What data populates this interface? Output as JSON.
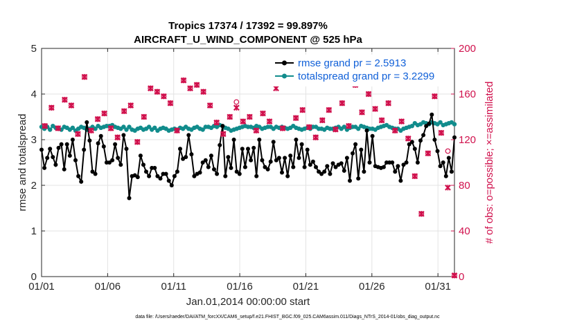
{
  "chart_data": {
    "type": "line",
    "title": "Tropics 17374 / 17392 = 99.897%",
    "subtitle": "AIRCRAFT_U_WIND_COMPONENT @ 525 hPa",
    "xlabel": "Jan.01,2014 00:00:00 start",
    "ylabel": "rmse and totalspread",
    "ylabel_right": "# of obs: o=possible; ×=assimilated",
    "footer": "data file: /Users/raeder/DAI/ATM_forcXX/CAM6_setup/f.e21.FHIST_BGC.f09_025.CAM6assim.011/Diags_NTrS_2014-01/obs_diag_output.nc",
    "xlim": [
      0,
      31.25
    ],
    "ylim": [
      0,
      5
    ],
    "ylim_right": [
      0,
      200
    ],
    "x_tick_values": [
      0,
      5,
      10,
      15,
      20,
      25,
      30
    ],
    "x_tick_labels": [
      "01/01",
      "01/06",
      "01/11",
      "01/16",
      "01/21",
      "01/26",
      "01/31"
    ],
    "y_ticks": [
      "0",
      "1",
      "2",
      "3",
      "4",
      "5"
    ],
    "y_ticks_right": [
      "0",
      "40",
      "80",
      "120",
      "160",
      "200"
    ],
    "legend_position": "top-right",
    "series": [
      {
        "name": "rmse grand pr = 2.5913",
        "axis": "left",
        "color": "#000000",
        "values": [
          2.78,
          2.38,
          2.6,
          2.8,
          2.62,
          2.45,
          2.82,
          2.9,
          2.35,
          2.9,
          2.65,
          3.0,
          2.55,
          2.2,
          2.08,
          2.78,
          3.38,
          2.98,
          2.3,
          2.25,
          2.92,
          3.08,
          2.85,
          2.5,
          2.5,
          2.55,
          2.9,
          2.6,
          2.45,
          3.1,
          2.8,
          1.72,
          2.2,
          2.22,
          2.18,
          2.65,
          2.45,
          2.3,
          2.2,
          2.38,
          2.38,
          2.2,
          2.15,
          2.25,
          2.25,
          2.1,
          2.0,
          2.2,
          2.3,
          2.8,
          2.58,
          2.62,
          3.1,
          2.68,
          2.2,
          2.25,
          2.28,
          2.5,
          2.55,
          2.4,
          2.65,
          2.35,
          2.25,
          2.88,
          3.3,
          2.2,
          2.62,
          2.38,
          3.0,
          2.3,
          2.25,
          2.8,
          2.4,
          2.8,
          2.55,
          2.82,
          2.2,
          3.0,
          2.55,
          2.4,
          2.35,
          2.52,
          2.95,
          2.55,
          2.6,
          2.28,
          2.6,
          2.2,
          2.65,
          2.4,
          3.0,
          2.6,
          2.9,
          2.4,
          2.78,
          2.45,
          2.52,
          2.4,
          2.3,
          2.25,
          2.3,
          2.42,
          2.25,
          2.48,
          2.4,
          2.45,
          2.48,
          2.32,
          2.6,
          2.1,
          2.7,
          2.9,
          2.15,
          2.78,
          2.3,
          3.2,
          2.5,
          3.08,
          2.42,
          2.4,
          2.38,
          2.4,
          2.5,
          2.5,
          2.5,
          2.3,
          2.42,
          2.1,
          2.45,
          2.5,
          2.9,
          2.95,
          2.8,
          2.5,
          2.98,
          3.1,
          3.3,
          3.35,
          3.55,
          3.0,
          2.75,
          2.42,
          2.5,
          2.2,
          2.6,
          2.3,
          3.05
        ],
        "marker": "point"
      },
      {
        "name": "totalspread grand pr = 3.2299",
        "axis": "left",
        "color": "#118c8c",
        "values": [
          3.28,
          3.24,
          3.28,
          3.22,
          3.3,
          3.26,
          3.24,
          3.22,
          3.28,
          3.26,
          3.22,
          3.26,
          3.2,
          3.24,
          3.28,
          3.26,
          3.22,
          3.24,
          3.28,
          3.24,
          3.3,
          3.26,
          3.28,
          3.3,
          3.3,
          3.32,
          3.28,
          3.26,
          3.24,
          3.28,
          3.22,
          3.28,
          3.22,
          3.2,
          3.24,
          3.26,
          3.22,
          3.24,
          3.28,
          3.22,
          3.26,
          3.2,
          3.24,
          3.26,
          3.24,
          3.2,
          3.22,
          3.24,
          3.22,
          3.26,
          3.24,
          3.28,
          3.24,
          3.22,
          3.26,
          3.28,
          3.24,
          3.22,
          3.28,
          3.28,
          3.26,
          3.3,
          3.28,
          3.32,
          3.3,
          3.26,
          3.24,
          3.2,
          3.22,
          3.24,
          3.26,
          3.28,
          3.3,
          3.28,
          3.28,
          3.26,
          3.3,
          3.28,
          3.24,
          3.26,
          3.28,
          3.28,
          3.24,
          3.28,
          3.26,
          3.28,
          3.26,
          3.24,
          3.26,
          3.3,
          3.26,
          3.24,
          3.22,
          3.24,
          3.26,
          3.24,
          3.28,
          3.28,
          3.24,
          3.24,
          3.22,
          3.26,
          3.24,
          3.24,
          3.26,
          3.28,
          3.24,
          3.28,
          3.22,
          3.26,
          3.28,
          3.28,
          3.24,
          3.3,
          3.28,
          3.26,
          3.24,
          3.24,
          3.22,
          3.26,
          3.28,
          3.3,
          3.32,
          3.28,
          3.26,
          3.24,
          3.24,
          3.2,
          3.24,
          3.26,
          3.28,
          3.3,
          3.36,
          3.32,
          3.34,
          3.38,
          3.36,
          3.34,
          3.38,
          3.36,
          3.34,
          3.38,
          3.32,
          3.34,
          3.36,
          3.38,
          3.34
        ],
        "marker": "circle"
      },
      {
        "name": "obs possible",
        "axis": "right",
        "color": "#d0104c",
        "marker": "o",
        "x": [
          0.25,
          0.75,
          1.25,
          1.75,
          2.25,
          2.75,
          3.25,
          3.75,
          4.25,
          4.75,
          5.25,
          5.75,
          6.25,
          6.75,
          7.25,
          7.75,
          8.25,
          8.75,
          9.25,
          9.75,
          10.25,
          10.75,
          11.25,
          11.75,
          12.25,
          12.75,
          13.25,
          13.75,
          14.25,
          14.75,
          15.25,
          15.75,
          16.25,
          16.75,
          17.25,
          17.75,
          18.25,
          18.75,
          19.25,
          19.75,
          20.25,
          20.75,
          21.25,
          21.75,
          22.25,
          22.75,
          23.25,
          23.75,
          24.25,
          24.75,
          25.25,
          25.75,
          26.25,
          26.75,
          27.25,
          27.75,
          28.25,
          28.75,
          29.25,
          29.75,
          30.25,
          30.75,
          31.25
        ],
        "y": [
          132,
          148,
          130,
          155,
          150,
          125,
          175,
          128,
          138,
          143,
          130,
          122,
          145,
          150,
          118,
          140,
          165,
          162,
          158,
          152,
          128,
          172,
          165,
          168,
          162,
          150,
          135,
          125,
          140,
          153,
          136,
          140,
          128,
          143,
          136,
          168,
          130,
          176,
          139,
          146,
          131,
          122,
          137,
          146,
          129,
          152,
          132,
          168,
          144,
          160,
          147,
          137,
          152,
          128,
          136,
          121,
          88,
          55,
          108,
          158,
          126,
          110,
          1
        ]
      },
      {
        "name": "obs assimilated",
        "axis": "right",
        "color": "#d0104c",
        "marker": "x",
        "x": [
          0.25,
          0.75,
          1.25,
          1.75,
          2.25,
          2.75,
          3.25,
          3.75,
          4.25,
          4.75,
          5.25,
          5.75,
          6.25,
          6.75,
          7.25,
          7.75,
          8.25,
          8.75,
          9.25,
          9.75,
          10.25,
          10.75,
          11.25,
          11.75,
          12.25,
          12.75,
          13.25,
          13.75,
          14.25,
          14.75,
          15.25,
          15.75,
          16.25,
          16.75,
          17.25,
          17.75,
          18.25,
          18.75,
          19.25,
          19.75,
          20.25,
          20.75,
          21.25,
          21.75,
          22.25,
          22.75,
          23.25,
          23.75,
          24.25,
          24.75,
          25.25,
          25.75,
          26.25,
          26.75,
          27.25,
          27.75,
          28.25,
          28.75,
          29.25,
          29.75,
          30.25,
          30.75,
          31.25
        ],
        "y": [
          132,
          148,
          130,
          155,
          150,
          125,
          175,
          128,
          138,
          143,
          130,
          122,
          145,
          150,
          118,
          140,
          165,
          162,
          158,
          152,
          128,
          172,
          165,
          168,
          162,
          150,
          135,
          125,
          140,
          148,
          136,
          140,
          128,
          143,
          136,
          165,
          130,
          176,
          139,
          146,
          131,
          122,
          137,
          146,
          129,
          152,
          132,
          168,
          144,
          160,
          147,
          137,
          152,
          128,
          136,
          121,
          88,
          55,
          108,
          158,
          126,
          78,
          1
        ]
      }
    ]
  }
}
